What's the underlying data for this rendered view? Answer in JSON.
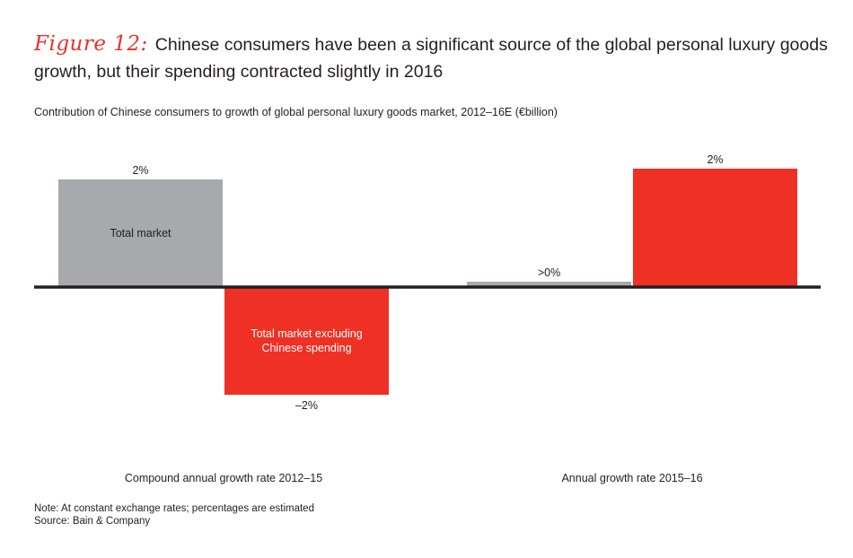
{
  "header": {
    "figure_label": "Figure 12:",
    "title": "Chinese consumers have been a significant source of the global personal luxury goods growth, but their spending contracted slightly in 2016",
    "subtitle": "Contribution of Chinese consumers to growth of global personal luxury goods market, 2012–16E (€billion)"
  },
  "chart_data": {
    "type": "bar",
    "categories": [
      "Compound annual growth rate 2012–15",
      "Annual growth rate 2015–16"
    ],
    "series": [
      {
        "name": "Total market",
        "values": [
          2,
          0.1
        ],
        "labels": [
          "2%",
          ">0%"
        ]
      },
      {
        "name": "Total market excluding Chinese spending",
        "values": [
          -2,
          2.2
        ],
        "labels": [
          "–2%",
          "2%"
        ]
      }
    ],
    "inbar_labels": [
      "Total market",
      "Total market excluding\nChinese spending"
    ],
    "colors": {
      "total": "#a7a9ac",
      "excluding": "#ee3124",
      "axis": "#231f20"
    },
    "ylim": [
      -2.35,
      2.5
    ]
  },
  "footer": {
    "note": "Note: At constant exchange rates; percentages are estimated",
    "source": "Source: Bain & Company"
  }
}
